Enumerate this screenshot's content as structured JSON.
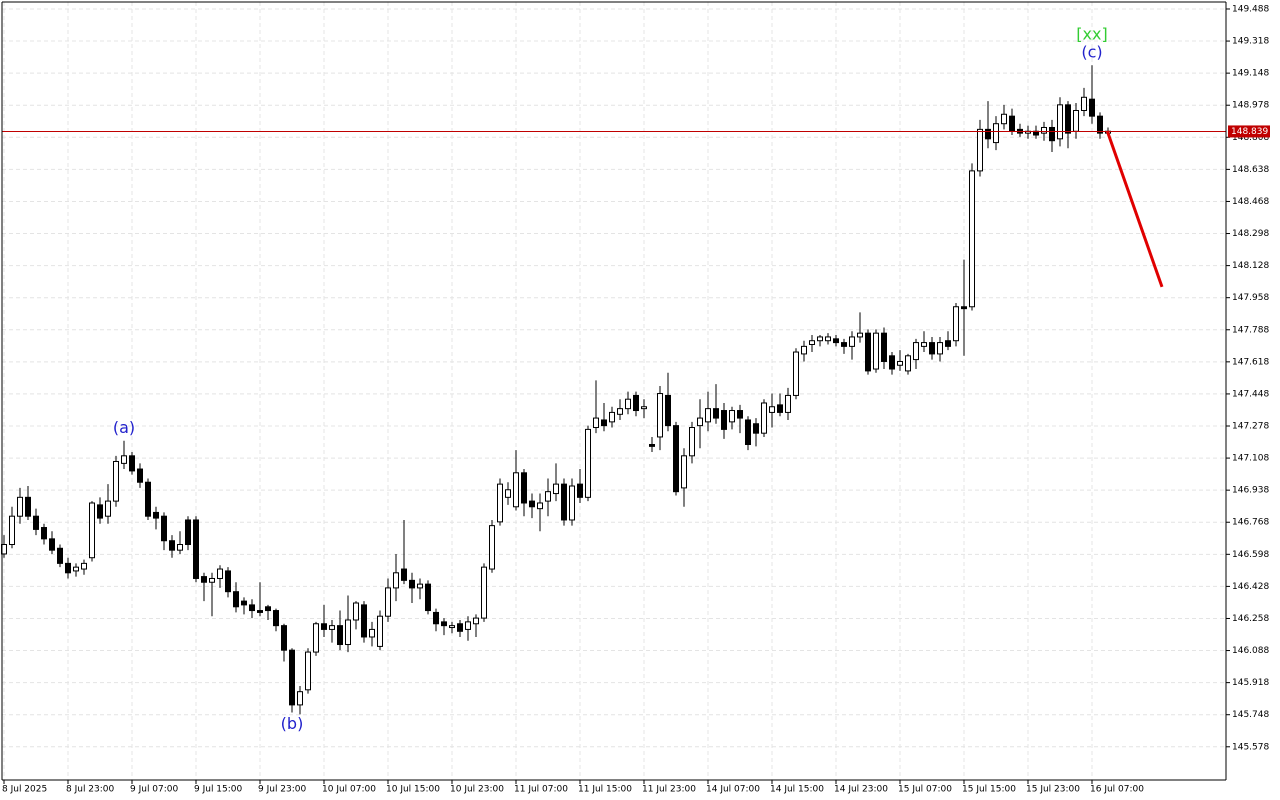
{
  "chart_data": {
    "type": "candlestick",
    "categories": [
      "8 Jul 2025",
      null,
      null,
      null,
      null,
      null,
      null,
      null,
      "8 Jul 23:00",
      null,
      null,
      null,
      null,
      null,
      null,
      null,
      "9 Jul 07:00",
      null,
      null,
      null,
      null,
      null,
      null,
      null,
      "9 Jul 15:00",
      null,
      null,
      null,
      null,
      null,
      null,
      null,
      "9 Jul 23:00",
      null,
      null,
      null,
      null,
      null,
      null,
      null,
      "10 Jul 07:00",
      null,
      null,
      null,
      null,
      null,
      null,
      null,
      "10 Jul 15:00",
      null,
      null,
      null,
      null,
      null,
      null,
      null,
      "10 Jul 23:00",
      null,
      null,
      null,
      null,
      null,
      null,
      null,
      "11 Jul 07:00",
      null,
      null,
      null,
      null,
      null,
      null,
      null,
      "11 Jul 15:00",
      null,
      null,
      null,
      null,
      null,
      null,
      null,
      "11 Jul 23:00",
      null,
      null,
      null,
      null,
      null,
      null,
      null,
      "14 Jul 07:00",
      null,
      null,
      null,
      null,
      null,
      null,
      null,
      "14 Jul 15:00",
      null,
      null,
      null,
      null,
      null,
      null,
      null,
      "14 Jul 23:00",
      null,
      null,
      null,
      null,
      null,
      null,
      null,
      "15 Jul 07:00",
      null,
      null,
      null,
      null,
      null,
      null,
      null,
      "15 Jul 15:00",
      null,
      null,
      null,
      null,
      null,
      null,
      null,
      "15 Jul 23:00",
      null,
      null,
      null,
      null,
      null,
      null,
      null,
      "16 Jul 07:00",
      null,
      null
    ],
    "open": [
      146.6,
      146.65,
      146.8,
      146.9,
      146.8,
      146.74,
      146.68,
      146.63,
      146.55,
      146.51,
      146.52,
      146.58,
      146.86,
      146.8,
      146.88,
      147.08,
      147.12,
      147.05,
      146.98,
      146.82,
      146.8,
      146.67,
      146.62,
      146.78,
      146.78,
      146.48,
      146.45,
      146.47,
      146.51,
      146.4,
      146.35,
      146.33,
      146.3,
      146.32,
      146.3,
      146.22,
      146.09,
      145.8,
      145.88,
      146.08,
      146.23,
      146.2,
      146.22,
      146.12,
      146.25,
      146.33,
      146.16,
      146.11,
      146.27,
      146.42,
      146.52,
      146.46,
      146.42,
      146.44,
      146.29,
      146.24,
      146.21,
      146.23,
      146.2,
      146.23,
      146.26,
      146.52,
      146.77,
      146.9,
      146.85,
      147.03,
      146.88,
      146.84,
      146.88,
      146.92,
      146.97,
      146.78,
      146.97,
      146.9,
      147.27,
      147.31,
      147.3,
      147.34,
      147.37,
      147.44,
      147.37,
      147.18,
      147.22,
      147.44,
      147.28,
      146.95,
      147.12,
      147.28,
      147.3,
      147.37,
      147.36,
      147.3,
      147.36,
      147.31,
      147.29,
      147.24,
      147.35,
      147.39,
      147.35,
      147.44,
      147.66,
      147.71,
      147.73,
      147.73,
      147.74,
      147.72,
      147.7,
      147.75,
      147.77,
      147.58,
      147.77,
      147.65,
      147.6,
      147.57,
      147.63,
      147.7,
      147.72,
      147.66,
      147.73,
      147.73,
      147.91,
      147.91,
      148.63,
      148.85,
      148.78,
      148.88,
      148.92,
      148.85,
      148.83,
      148.84,
      148.83,
      148.86,
      148.8,
      148.98,
      148.84,
      148.95,
      149.01,
      148.92,
      148.83
    ],
    "high": [
      146.7,
      146.85,
      146.95,
      146.96,
      146.84,
      146.76,
      146.72,
      146.65,
      146.58,
      146.55,
      146.57,
      146.88,
      146.9,
      146.97,
      147.12,
      147.2,
      147.14,
      147.08,
      147.0,
      146.85,
      146.82,
      146.7,
      146.72,
      146.8,
      146.8,
      146.5,
      146.5,
      146.54,
      146.53,
      146.45,
      146.37,
      146.36,
      146.45,
      146.33,
      146.31,
      146.23,
      146.1,
      145.9,
      146.1,
      146.24,
      146.33,
      146.25,
      146.3,
      146.38,
      146.35,
      146.35,
      146.24,
      146.3,
      146.47,
      146.6,
      146.78,
      146.5,
      146.47,
      146.46,
      146.31,
      146.26,
      146.24,
      146.25,
      146.27,
      146.28,
      146.55,
      146.78,
      147.0,
      146.98,
      147.15,
      147.05,
      146.92,
      146.92,
      147.0,
      147.08,
      147.0,
      147.0,
      147.05,
      147.28,
      147.52,
      147.4,
      147.38,
      147.42,
      147.46,
      147.46,
      147.42,
      147.22,
      147.49,
      147.56,
      147.3,
      147.16,
      147.3,
      147.42,
      147.46,
      147.5,
      147.4,
      147.38,
      147.39,
      147.33,
      147.32,
      147.42,
      147.45,
      147.45,
      147.48,
      147.69,
      147.73,
      147.76,
      147.76,
      147.77,
      147.76,
      147.74,
      147.78,
      147.88,
      147.79,
      147.79,
      147.8,
      147.67,
      147.68,
      147.66,
      147.74,
      147.78,
      147.75,
      147.75,
      147.78,
      147.93,
      148.16,
      148.67,
      148.9,
      149.0,
      148.92,
      148.98,
      148.96,
      148.88,
      148.87,
      148.87,
      148.89,
      148.9,
      149.02,
      149.0,
      148.99,
      149.07,
      149.19,
      148.94,
      148.86
    ],
    "low": [
      146.58,
      146.63,
      146.76,
      146.78,
      146.7,
      146.65,
      146.6,
      146.53,
      146.47,
      146.48,
      146.49,
      146.56,
      146.76,
      146.76,
      146.85,
      147.05,
      147.02,
      146.95,
      146.78,
      146.73,
      146.62,
      146.58,
      146.6,
      146.62,
      146.45,
      146.35,
      146.27,
      146.42,
      146.37,
      146.29,
      146.28,
      146.26,
      146.27,
      146.25,
      146.19,
      146.03,
      145.76,
      145.75,
      145.86,
      146.06,
      146.16,
      146.13,
      146.09,
      146.08,
      146.2,
      146.13,
      146.11,
      146.09,
      146.24,
      146.35,
      146.44,
      146.34,
      146.36,
      146.28,
      146.19,
      146.17,
      146.18,
      146.16,
      146.14,
      146.16,
      146.24,
      146.5,
      146.75,
      146.86,
      146.83,
      146.8,
      146.79,
      146.72,
      146.8,
      146.88,
      146.75,
      146.75,
      146.87,
      146.88,
      147.24,
      147.25,
      147.27,
      147.31,
      147.34,
      147.33,
      147.32,
      147.14,
      147.15,
      147.25,
      146.91,
      146.85,
      147.08,
      147.16,
      147.25,
      147.29,
      147.21,
      147.26,
      147.24,
      147.15,
      147.17,
      147.22,
      147.27,
      147.33,
      147.31,
      147.42,
      147.62,
      147.67,
      147.7,
      147.71,
      147.7,
      147.66,
      147.63,
      147.72,
      147.55,
      147.56,
      147.58,
      147.55,
      147.57,
      147.55,
      147.58,
      147.67,
      147.63,
      147.62,
      147.68,
      147.7,
      147.65,
      147.89,
      148.6,
      148.75,
      148.74,
      148.85,
      148.82,
      148.81,
      148.8,
      148.8,
      148.79,
      148.73,
      148.76,
      148.75,
      148.8,
      148.92,
      148.88,
      148.8,
      148.82
    ],
    "close": [
      146.65,
      146.8,
      146.9,
      146.8,
      146.73,
      146.68,
      146.62,
      146.55,
      146.5,
      146.53,
      146.55,
      146.87,
      146.79,
      146.88,
      147.09,
      147.12,
      147.04,
      146.98,
      146.8,
      146.79,
      146.67,
      146.62,
      146.65,
      146.65,
      146.47,
      146.45,
      146.47,
      146.52,
      146.4,
      146.32,
      146.33,
      146.3,
      146.29,
      146.3,
      146.22,
      146.09,
      145.8,
      145.87,
      146.08,
      146.23,
      146.2,
      146.22,
      146.12,
      146.25,
      146.34,
      146.16,
      146.2,
      146.27,
      146.42,
      146.5,
      146.46,
      146.42,
      146.44,
      146.3,
      146.23,
      146.22,
      146.22,
      146.19,
      146.24,
      146.26,
      146.53,
      146.75,
      146.97,
      146.94,
      147.03,
      146.87,
      146.85,
      146.87,
      146.93,
      146.97,
      146.78,
      146.96,
      146.9,
      147.26,
      147.32,
      147.28,
      147.35,
      147.37,
      147.42,
      147.36,
      147.38,
      147.17,
      147.45,
      147.28,
      146.93,
      147.12,
      147.27,
      147.32,
      147.37,
      147.32,
      147.26,
      147.36,
      147.32,
      147.18,
      147.24,
      147.4,
      147.38,
      147.35,
      147.44,
      147.67,
      147.7,
      147.73,
      147.75,
      147.75,
      147.72,
      147.7,
      147.75,
      147.77,
      147.57,
      147.77,
      147.62,
      147.58,
      147.62,
      147.65,
      147.72,
      147.72,
      147.66,
      147.72,
      147.7,
      147.91,
      147.9,
      148.63,
      148.85,
      148.8,
      148.88,
      148.93,
      148.84,
      148.83,
      148.84,
      148.82,
      148.86,
      148.79,
      148.98,
      148.83,
      148.95,
      149.02,
      148.92,
      148.83,
      148.84
    ],
    "ylim": [
      145.402,
      149.525
    ],
    "yticks": [
      145.578,
      145.748,
      145.918,
      146.088,
      146.258,
      146.428,
      146.598,
      146.768,
      146.938,
      147.108,
      147.278,
      147.448,
      147.618,
      147.788,
      147.958,
      148.128,
      148.298,
      148.468,
      148.638,
      148.808,
      148.978,
      149.148,
      149.318,
      149.488
    ],
    "grid": true,
    "up_color": "#ffffff",
    "down_color": "#000000",
    "edge_color": "#000000",
    "price_line": {
      "value": 148.839,
      "color": "#c00000"
    },
    "forecast": {
      "x": [
        137.9,
        144.75
      ],
      "y": [
        148.842,
        148.015
      ],
      "color": "#e00000"
    },
    "annotations": [
      {
        "text": "(a)",
        "candle": 15,
        "side": "above",
        "color": "#2222cc"
      },
      {
        "text": "(b)",
        "candle": 36,
        "side": "below",
        "color": "#2222cc"
      },
      {
        "text": "(c)",
        "candle": 136,
        "side": "above",
        "color": "#2222cc"
      },
      {
        "text": "[xx]",
        "candle": 136,
        "side": "above2",
        "color": "#33cc33"
      }
    ]
  }
}
